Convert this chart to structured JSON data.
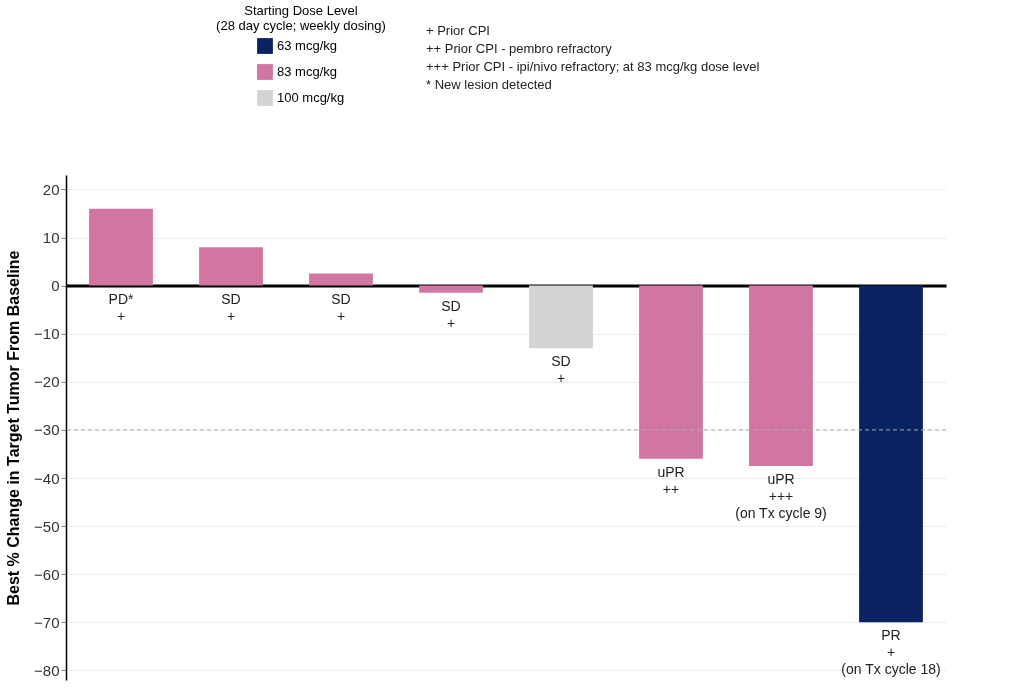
{
  "chart_data": {
    "type": "bar",
    "ylabel": "Best % Change in Target Tumor From Baseline",
    "legend_title": "Starting Dose Level\n(28 day cycle; weekly dosing)",
    "categories": [
      null,
      null,
      null,
      null,
      null,
      null,
      null,
      null
    ],
    "series": [
      {
        "name": "63 mcg/kg",
        "color": "#0b2260",
        "values": [
          null,
          null,
          null,
          null,
          null,
          null,
          null,
          -70
        ],
        "value_labels": [
          null,
          null,
          null,
          null,
          null,
          null,
          null,
          "PR\n+\n(on Tx cycle 18)"
        ]
      },
      {
        "name": "83 mcg/kg",
        "color": "#d176a2",
        "values": [
          16,
          8,
          2.5,
          -1.5,
          null,
          -36,
          -37.5,
          null
        ],
        "value_labels": [
          "PD*\n+",
          "SD\n+",
          "SD\n+",
          "SD\n+",
          null,
          "uPR\n++",
          "uPR\n+++\n(on Tx cycle 9)",
          null
        ]
      },
      {
        "name": "100 mcg/kg",
        "color": "#d3d3d3",
        "values": [
          null,
          null,
          null,
          null,
          -13,
          null,
          null,
          null
        ],
        "value_labels": [
          null,
          null,
          null,
          null,
          "SD\n+",
          null,
          null,
          null
        ]
      }
    ],
    "ylim": [
      -82,
      23
    ],
    "yticks": [
      20,
      10,
      0,
      -10,
      -20,
      -30,
      -40,
      -50,
      -60,
      -70,
      -80
    ],
    "ref_lines": [
      {
        "axis": "y",
        "value": -30,
        "color": "#aaaaaa",
        "line_style": "dashed"
      }
    ],
    "annotations": [
      "+ Prior CPI",
      "++ Prior CPI - pembro refractory",
      "+++ Prior CPI - ipi/nivo refractory; at 83 mcg/kg dose level",
      "* New lesion detected"
    ],
    "grid": "y",
    "legend": "top left",
    "tick_labels": "y"
  }
}
